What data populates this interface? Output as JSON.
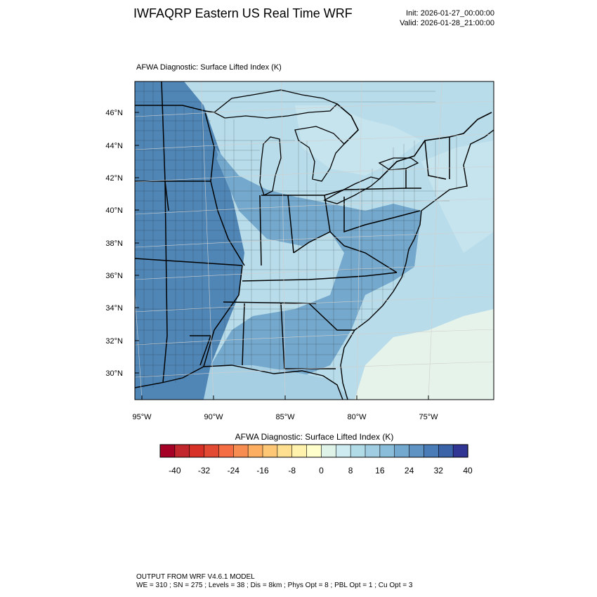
{
  "header": {
    "title": "IWFAQRP Eastern US Real Time WRF",
    "init": "Init: 2026-01-27_00:00:00",
    "valid": "Valid: 2026-01-28_21:00:00"
  },
  "field_title": "AFWA Diagnostic: Surface Lifted Index   (K)",
  "map": {
    "lat_labels": [
      "30°N",
      "32°N",
      "34°N",
      "36°N",
      "38°N",
      "40°N",
      "42°N",
      "44°N",
      "46°N"
    ],
    "lon_labels": [
      "95°W",
      "90°W",
      "85°W",
      "80°W",
      "75°W"
    ],
    "fill_colors": {
      "deep": "#4f86b6",
      "mid": "#74a8cc",
      "light": "#a7cfe3",
      "pale": "#c6e4ee",
      "ocean": "#b8dcea",
      "near_zero": "#e6f3ea"
    }
  },
  "colorbar": {
    "title": "AFWA Diagnostic: Surface Lifted Index  (K)",
    "colors": [
      "#a50026",
      "#c1272d",
      "#d73027",
      "#e34a33",
      "#f46d43",
      "#f88d52",
      "#fdae61",
      "#fdc776",
      "#fee090",
      "#fff2ac",
      "#ffffcc",
      "#e0f3e8",
      "#cdebf0",
      "#b2dbe8",
      "#a0cde2",
      "#8abdd9",
      "#74a9cf",
      "#5f93c3",
      "#4a7db8",
      "#3a63a8",
      "#313695"
    ],
    "tick_labels": [
      "-40",
      "-32",
      "-24",
      "-16",
      "-8",
      "0",
      "8",
      "16",
      "24",
      "32",
      "40"
    ]
  },
  "footer": {
    "line1": "OUTPUT FROM WRF V4.6.1 MODEL",
    "line2": "WE = 310 ; SN = 275 ; Levels = 38 ; Dis = 8km ; Phys Opt = 8 ; PBL Opt = 1 ; Cu Opt = 3"
  }
}
